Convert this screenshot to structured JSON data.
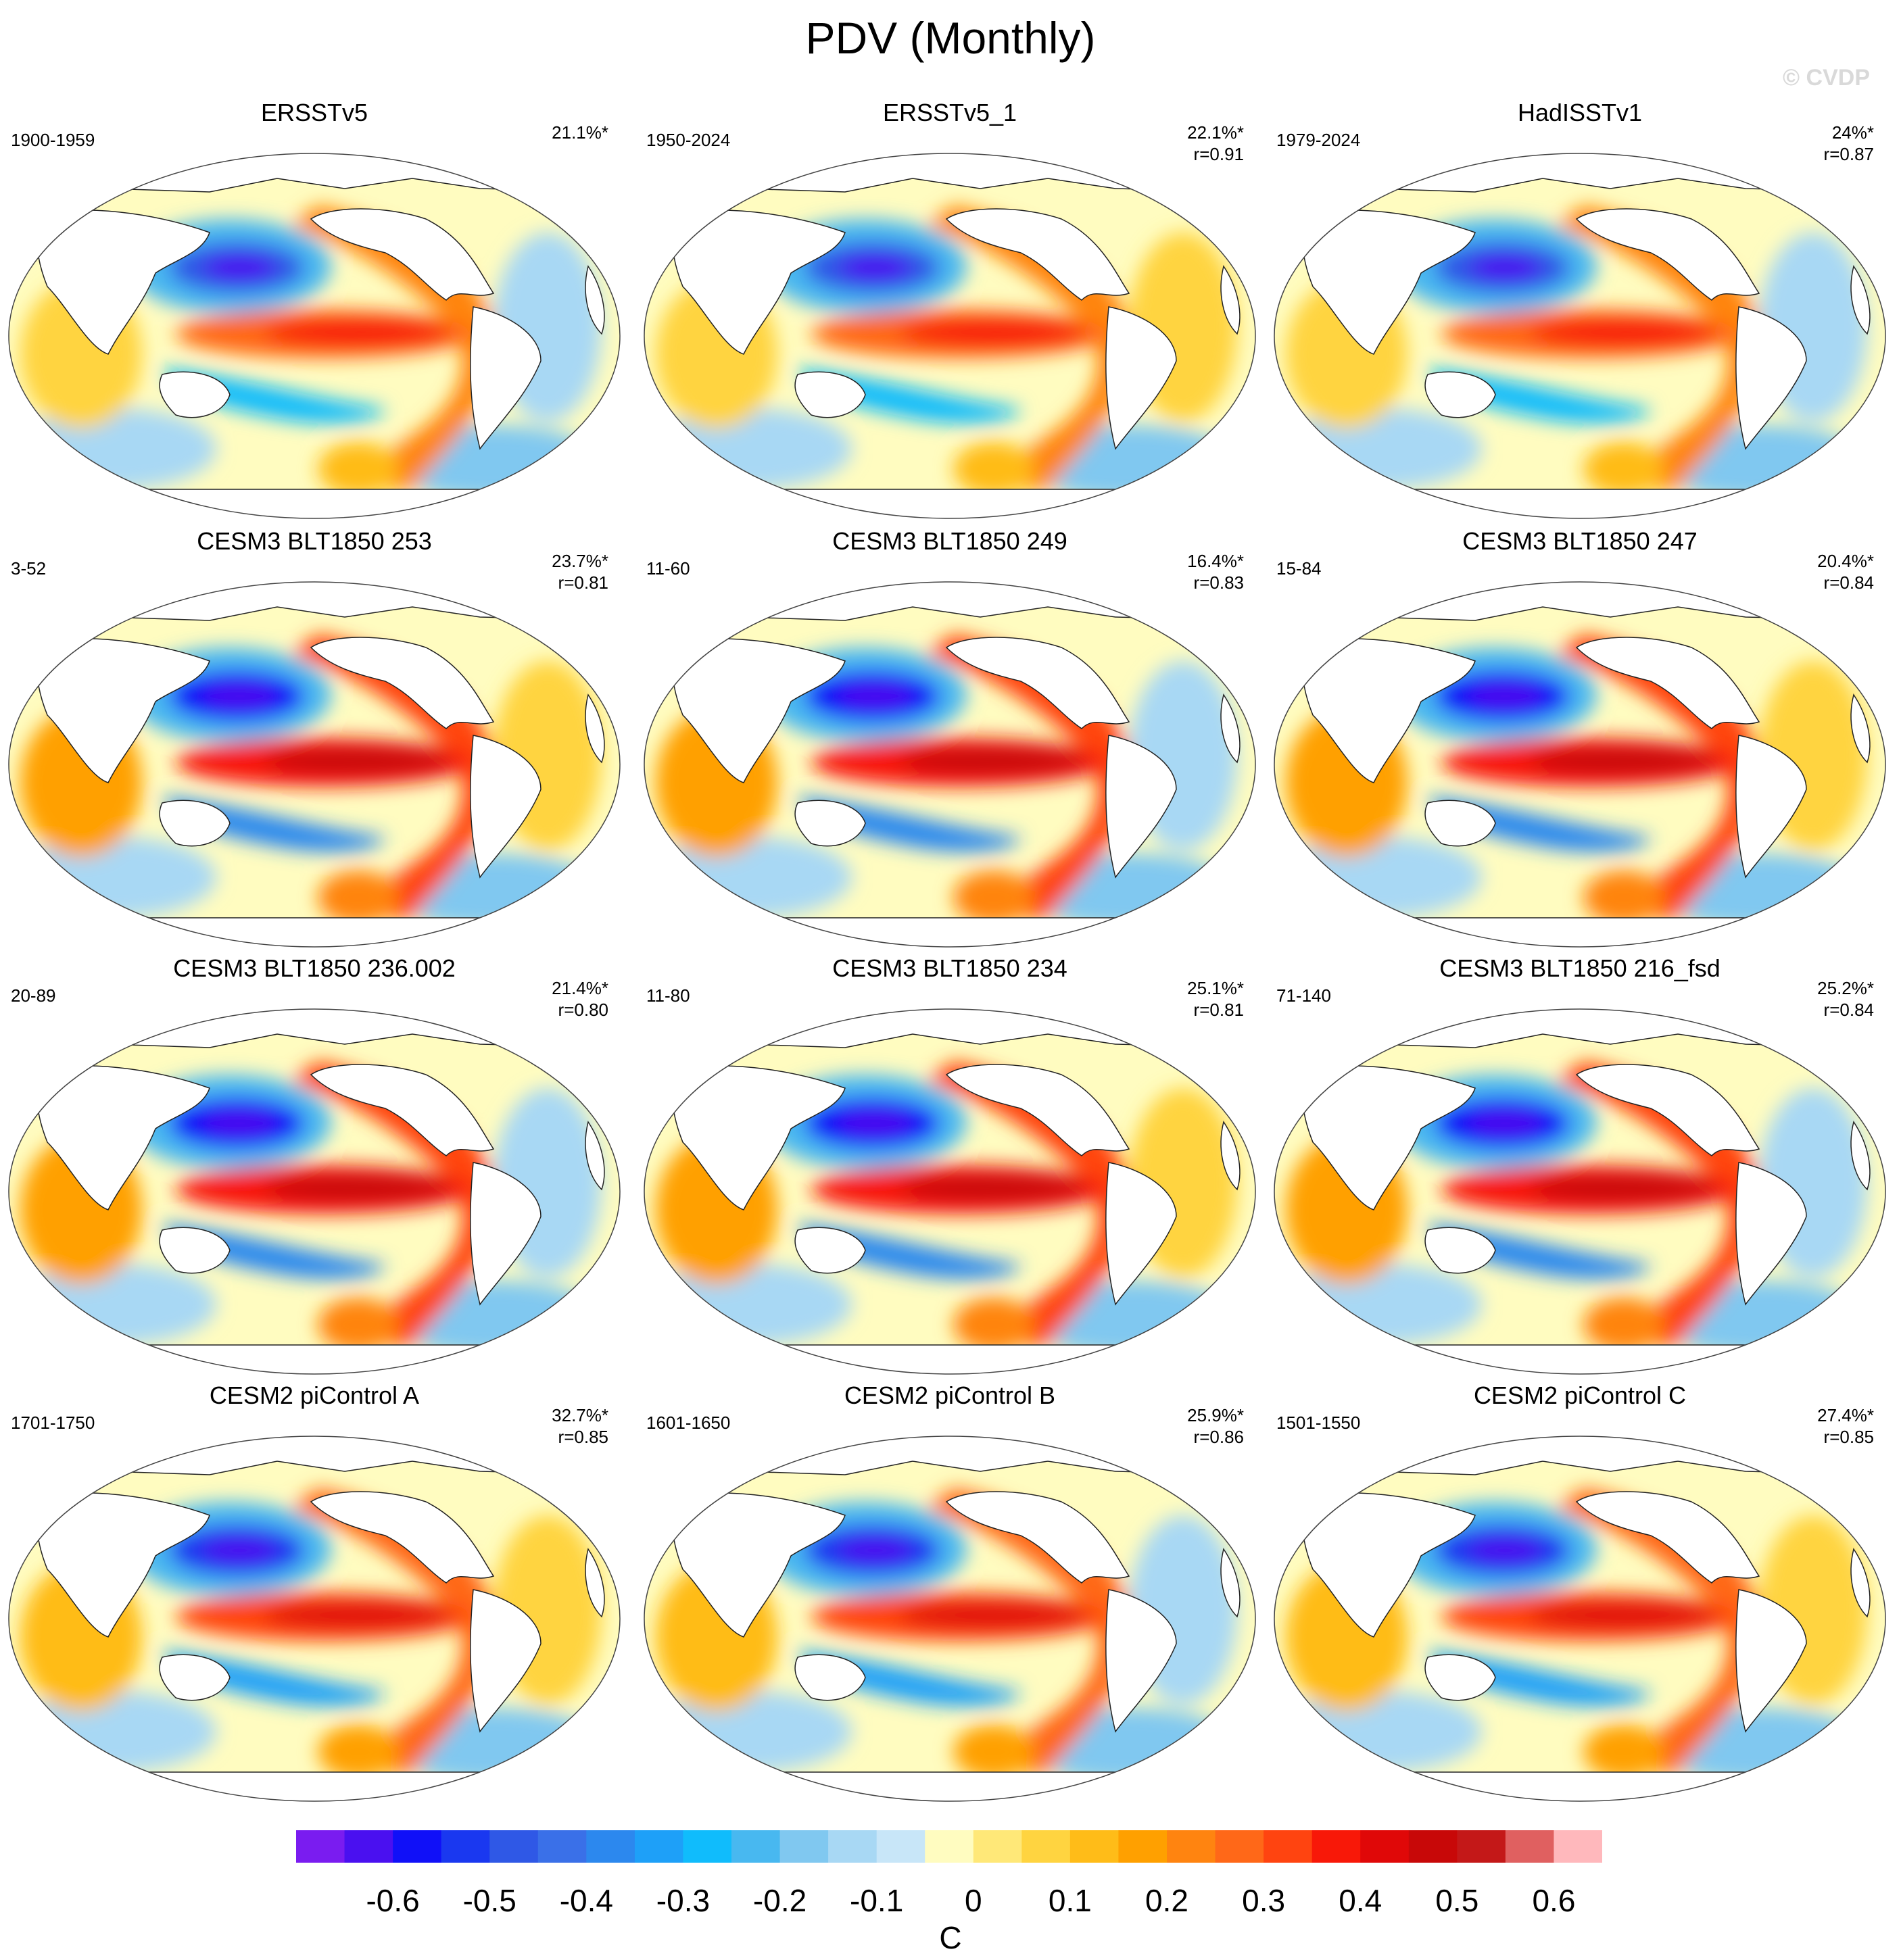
{
  "title": "PDV (Monthly)",
  "watermark": "© CVDP",
  "panels": [
    {
      "name": "ERSSTv5",
      "period": "1900-1959",
      "pct": "21.1%*",
      "r": ""
    },
    {
      "name": "ERSSTv5_1",
      "period": "1950-2024",
      "pct": "22.1%*",
      "r": "r=0.91"
    },
    {
      "name": "HadISSTv1",
      "period": "1979-2024",
      "pct": "24%*",
      "r": "r=0.87"
    },
    {
      "name": "CESM3 BLT1850 253",
      "period": "3-52",
      "pct": "23.7%*",
      "r": "r=0.81"
    },
    {
      "name": "CESM3 BLT1850 249",
      "period": "11-60",
      "pct": "16.4%*",
      "r": "r=0.83"
    },
    {
      "name": "CESM3 BLT1850 247",
      "period": "15-84",
      "pct": "20.4%*",
      "r": "r=0.84"
    },
    {
      "name": "CESM3 BLT1850 236.002",
      "period": "20-89",
      "pct": "21.4%*",
      "r": "r=0.80"
    },
    {
      "name": "CESM3 BLT1850 234",
      "period": "11-80",
      "pct": "25.1%*",
      "r": "r=0.81"
    },
    {
      "name": "CESM3 BLT1850 216_fsd",
      "period": "71-140",
      "pct": "25.2%*",
      "r": "r=0.84"
    },
    {
      "name": "CESM2 piControl A",
      "period": "1701-1750",
      "pct": "32.7%*",
      "r": "r=0.85"
    },
    {
      "name": "CESM2 piControl B",
      "period": "1601-1650",
      "pct": "25.9%*",
      "r": "r=0.86"
    },
    {
      "name": "CESM2 piControl C",
      "period": "1501-1550",
      "pct": "27.4%*",
      "r": "r=0.85"
    }
  ],
  "colorbar": {
    "labels": [
      "-0.6",
      "-0.5",
      "-0.4",
      "-0.3",
      "-0.2",
      "-0.1",
      "0",
      "0.1",
      "0.2",
      "0.3",
      "0.4",
      "0.5",
      "0.6"
    ],
    "units": "C",
    "colors": [
      "#7a1cf0",
      "#4a10f0",
      "#1010f8",
      "#1a38f0",
      "#2f58e6",
      "#3a70e8",
      "#2c88ee",
      "#1ea0f8",
      "#10bcfc",
      "#48b8f0",
      "#80c8f0",
      "#a8d8f4",
      "#c8e6f8",
      "#fffcc0",
      "#ffe878",
      "#ffd440",
      "#ffbc18",
      "#ffa000",
      "#ff8410",
      "#ff6818",
      "#ff4410",
      "#f81808",
      "#e00808",
      "#c80808",
      "#c41818",
      "#e06060",
      "#ffb8bc"
    ]
  }
}
